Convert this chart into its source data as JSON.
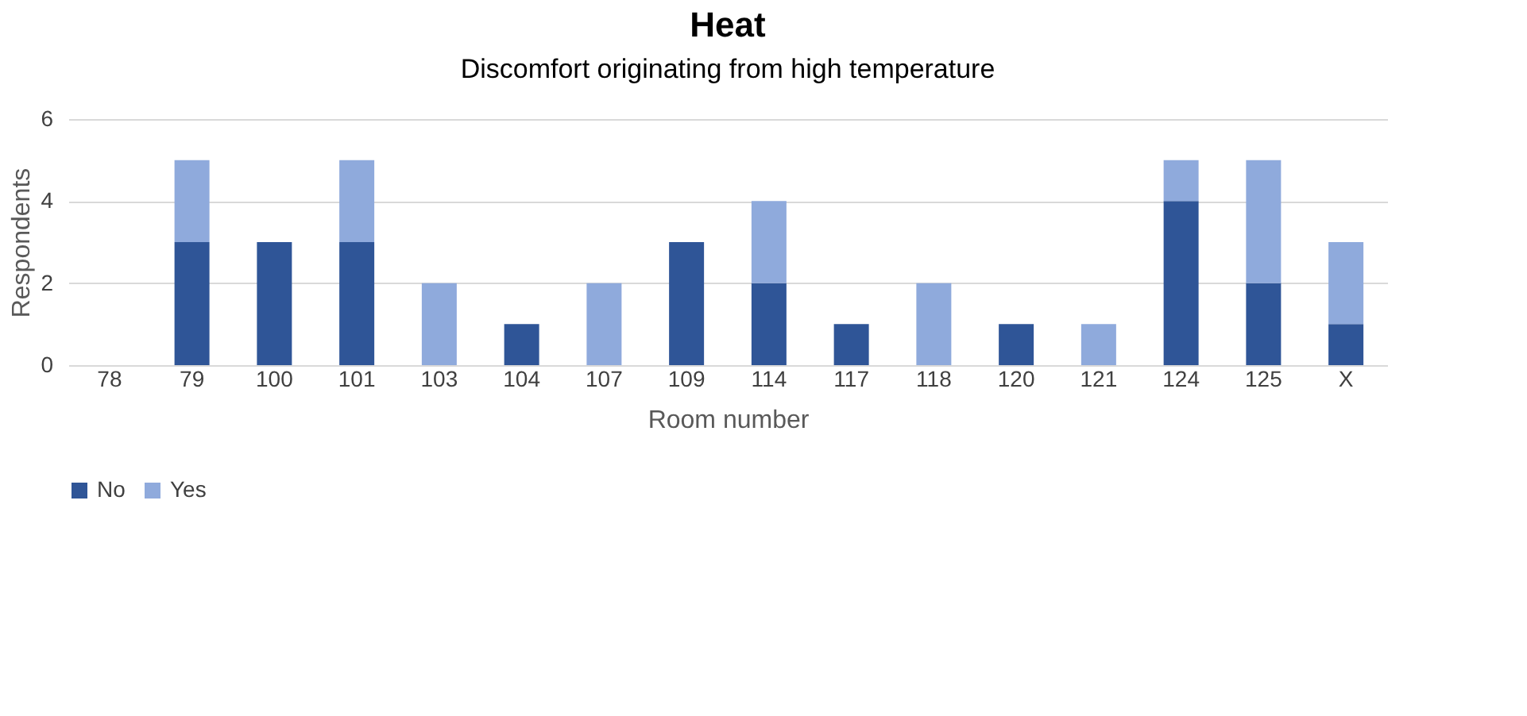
{
  "chart_data": {
    "type": "bar",
    "title": "Heat",
    "subtitle": "Discomfort originating from high temperature",
    "xlabel": "Room number",
    "ylabel": "Respondents",
    "categories": [
      "78",
      "79",
      "100",
      "101",
      "103",
      "104",
      "107",
      "109",
      "114",
      "117",
      "118",
      "120",
      "121",
      "124",
      "125",
      "X"
    ],
    "stacked": true,
    "series": [
      {
        "name": "No",
        "color": "#2f5597",
        "values": [
          0,
          3,
          3,
          3,
          0,
          1,
          0,
          3,
          2,
          1,
          0,
          1,
          0,
          4,
          2,
          1
        ]
      },
      {
        "name": "Yes",
        "color": "#8faadc",
        "values": [
          0,
          2,
          0,
          2,
          2,
          0,
          2,
          0,
          2,
          0,
          2,
          0,
          1,
          1,
          3,
          2
        ]
      }
    ],
    "ylim": [
      0,
      6
    ],
    "yticks": [
      0,
      2,
      4,
      6
    ],
    "grid": "y",
    "legend": "bottom"
  }
}
